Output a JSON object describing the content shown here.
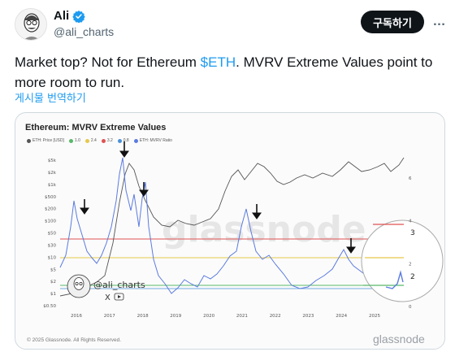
{
  "author": {
    "name": "Ali",
    "handle": "@ali_charts",
    "follow_label": "구독하기",
    "more_label": "…"
  },
  "tweet": {
    "text_before": "Market top? Not for Ethereum ",
    "cashtag": "$ETH",
    "text_after": ". MVRV Extreme Values point to more room to run.",
    "translate_label": "게시물 번역하기"
  },
  "media": {
    "watermark": "glassnode",
    "credit_handle": "@ali_charts",
    "footer_copyright": "© 2025 Glassnode. All Rights Reserved.",
    "footer_brand": "glassnode",
    "zoom_labels": [
      "3",
      "2"
    ],
    "colors": {
      "price_line": "#555555",
      "mvrv_line": "#5b7be0",
      "band_red": "#e05252",
      "band_yellow": "#e6c84a",
      "band_green": "#59b86a",
      "band_blue": "#4a90d9"
    }
  },
  "chart_data": {
    "type": "line",
    "title": "Ethereum: MVRV Extreme Values",
    "legend": [
      {
        "name": "ETH: Price [USD]",
        "color": "#555555"
      },
      {
        "name": "1.0",
        "color": "#59b86a"
      },
      {
        "name": "2.4",
        "color": "#e6c84a"
      },
      {
        "name": "3.2",
        "color": "#e05252"
      },
      {
        "name": "0.8",
        "color": "#4a90d9"
      },
      {
        "name": "ETH: MVRV Ratio",
        "color": "#5b7be0"
      }
    ],
    "x_ticks": [
      "2016",
      "2017",
      "2018",
      "2019",
      "2020",
      "2021",
      "2022",
      "2023",
      "2024",
      "2025"
    ],
    "y_left_ticks": [
      "$5k",
      "$2k",
      "$1k",
      "$500",
      "$200",
      "$100",
      "$50",
      "$30",
      "$10",
      "$5",
      "$2",
      "$1",
      "$0.50"
    ],
    "y_right_ticks": [
      "6",
      "4",
      "2",
      "0"
    ],
    "bands": [
      {
        "name": "3.2",
        "color": "#e05252"
      },
      {
        "name": "2.4",
        "color": "#e6c84a"
      },
      {
        "name": "1.0",
        "color": "#59b86a"
      },
      {
        "name": "0.8",
        "color": "#4a90d9"
      }
    ],
    "mvrv_peaks_marked": [
      "2016",
      "2017",
      "2018",
      "2021",
      "2024"
    ]
  }
}
